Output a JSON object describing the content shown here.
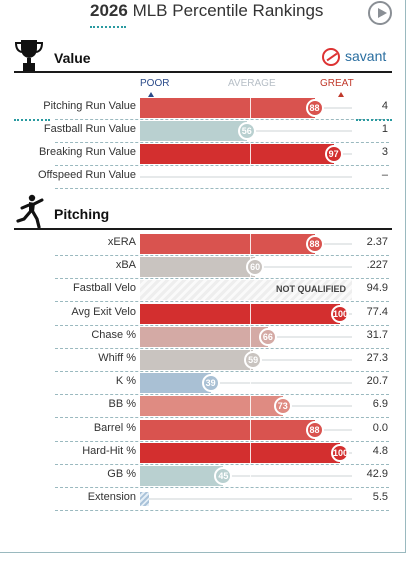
{
  "header": {
    "year": "2026",
    "title": "MLB Percentile Rankings"
  },
  "value_section": {
    "title": "Value",
    "brand": "savant",
    "scale": {
      "poor": "POOR",
      "average": "AVERAGE",
      "great": "GREAT"
    },
    "rows": [
      {
        "label": "Pitching Run Value",
        "percentile": 88,
        "value": "4",
        "color": "#d9534f",
        "show_circle": true
      },
      {
        "label": "Fastball Run Value",
        "percentile": 56,
        "value": "1",
        "color": "#b9d0d0",
        "show_circle": true
      },
      {
        "label": "Breaking Run Value",
        "percentile": 97,
        "value": "3",
        "color": "#d32f2f",
        "show_circle": true
      },
      {
        "label": "Offspeed Run Value",
        "percentile": null,
        "value": "–",
        "color": "#ffffff",
        "show_circle": false
      }
    ]
  },
  "pitching_section": {
    "title": "Pitching",
    "not_qualified_label": "NOT QUALIFIED",
    "rows": [
      {
        "label": "xERA",
        "percentile": 88,
        "value": "2.37",
        "color": "#d9534f",
        "kind": "bar"
      },
      {
        "label": "xBA",
        "percentile": 60,
        "value": ".227",
        "color": "#c9c4c0",
        "kind": "bar"
      },
      {
        "label": "Fastball Velo",
        "percentile": null,
        "value": "94.9",
        "color": "#eeeeee",
        "kind": "not-qualified"
      },
      {
        "label": "Avg Exit Velo",
        "percentile": 100,
        "value": "77.4",
        "color": "#d32f2f",
        "kind": "bar"
      },
      {
        "label": "Chase %",
        "percentile": 66,
        "value": "31.7",
        "color": "#d4aaa5",
        "kind": "bar"
      },
      {
        "label": "Whiff %",
        "percentile": 59,
        "value": "27.3",
        "color": "#c9c4c0",
        "kind": "bar"
      },
      {
        "label": "K %",
        "percentile": 39,
        "value": "20.7",
        "color": "#a9c0d4",
        "kind": "bar"
      },
      {
        "label": "BB %",
        "percentile": 73,
        "value": "6.9",
        "color": "#df8b82",
        "kind": "bar"
      },
      {
        "label": "Barrel %",
        "percentile": 88,
        "value": "0.0",
        "color": "#d9534f",
        "kind": "bar"
      },
      {
        "label": "Hard-Hit %",
        "percentile": 100,
        "value": "4.8",
        "color": "#d32f2f",
        "kind": "bar"
      },
      {
        "label": "GB %",
        "percentile": 45,
        "value": "42.9",
        "color": "#b9d0d0",
        "kind": "bar"
      },
      {
        "label": "Extension",
        "percentile": null,
        "value": "5.5",
        "color": "#a9c2d9",
        "kind": "extension"
      }
    ]
  }
}
